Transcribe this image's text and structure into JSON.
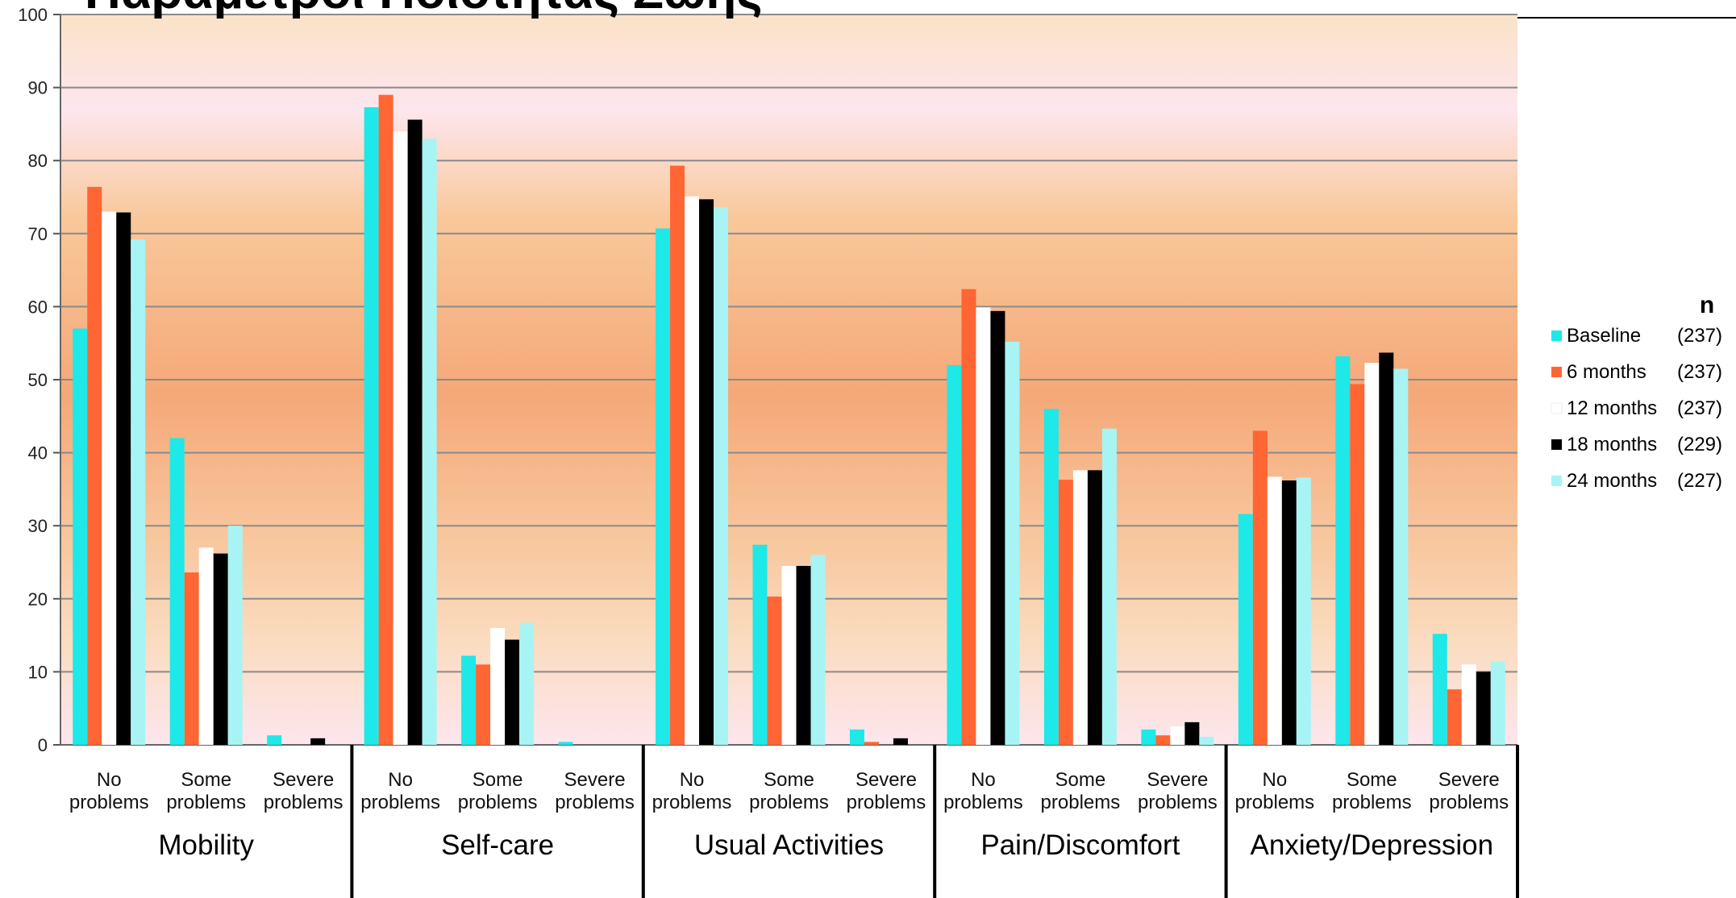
{
  "chart_data": {
    "type": "bar",
    "title": "Παράμετροι Ποιότητας Ζωής",
    "groups": [
      "Mobility",
      "Self-care",
      "Usual Activities",
      "Pain/Discomfort",
      "Anxiety/Depression"
    ],
    "categories": [
      [
        "No",
        "problems"
      ],
      [
        "Some",
        "problems"
      ],
      [
        "Severe",
        "problems"
      ],
      [
        "No",
        "problems"
      ],
      [
        "Some",
        "problems"
      ],
      [
        "Severe",
        "problems"
      ],
      [
        "No",
        "problems"
      ],
      [
        "Some",
        "problems"
      ],
      [
        "Severe",
        "problems"
      ],
      [
        "No",
        "problems"
      ],
      [
        "Some",
        "problems"
      ],
      [
        "Severe",
        "problems"
      ],
      [
        "No",
        "problems"
      ],
      [
        "Some",
        "problems"
      ],
      [
        "Severe",
        "problems"
      ]
    ],
    "ylim": [
      0,
      100
    ],
    "yticks": [
      0,
      10,
      20,
      30,
      40,
      50,
      60,
      70,
      80,
      90,
      100
    ],
    "grid": true,
    "legend_position": "right",
    "legend_header": "n",
    "series": [
      {
        "name": "Baseline",
        "n": "(237)",
        "color": "#1ee8e8",
        "values": [
          57,
          42,
          1.3,
          87.3,
          12.2,
          0.4,
          70.7,
          27.4,
          2.1,
          52,
          46,
          2.1,
          31.6,
          53.2,
          15.2
        ]
      },
      {
        "name": "6 months",
        "n": "(237)",
        "color": "#ff6633",
        "values": [
          76.4,
          23.6,
          0,
          89,
          11,
          0,
          79.3,
          20.3,
          0.4,
          62.4,
          36.3,
          1.3,
          43,
          49.4,
          7.6
        ]
      },
      {
        "name": "12 months",
        "n": "(237)",
        "color": "#ffffff",
        "values": [
          73,
          27,
          0,
          84,
          16,
          0,
          75.1,
          24.5,
          0,
          59.9,
          37.6,
          2.5,
          36.7,
          52.3,
          11
        ]
      },
      {
        "name": "18 months",
        "n": "(229)",
        "color": "#000000",
        "values": [
          72.9,
          26.2,
          0.9,
          85.6,
          14.4,
          0,
          74.7,
          24.5,
          0.9,
          59.4,
          37.6,
          3.1,
          36.2,
          53.7,
          10
        ]
      },
      {
        "name": "24 months",
        "n": "(227)",
        "color": "#a8f4f4",
        "values": [
          69.2,
          30,
          0,
          83,
          16.7,
          0,
          73.6,
          26,
          0,
          55.2,
          43.3,
          1.1,
          36.6,
          51.5,
          11.4
        ]
      }
    ]
  }
}
